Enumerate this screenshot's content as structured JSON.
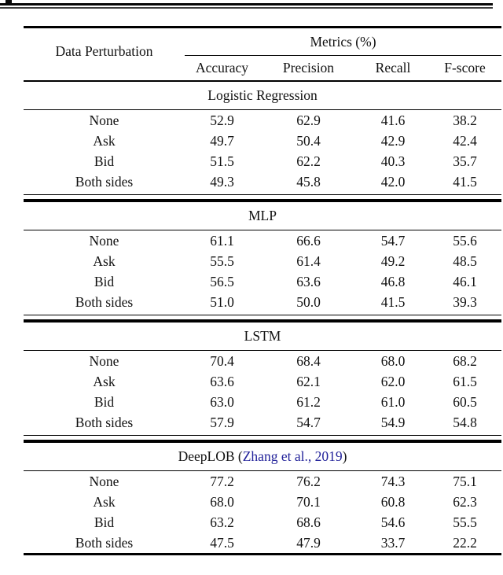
{
  "table": {
    "row_header": "Data Perturbation",
    "metrics_header": "Metrics (%)",
    "columns": [
      "Accuracy",
      "Precision",
      "Recall",
      "F-score"
    ],
    "citation_color": "#22229a",
    "sections": [
      {
        "title": "Logistic Regression",
        "rows": [
          {
            "label": "None",
            "values": [
              "52.9",
              "62.9",
              "41.6",
              "38.2"
            ]
          },
          {
            "label": "Ask",
            "values": [
              "49.7",
              "50.4",
              "42.9",
              "42.4"
            ]
          },
          {
            "label": "Bid",
            "values": [
              "51.5",
              "62.2",
              "40.3",
              "35.7"
            ]
          },
          {
            "label": "Both sides",
            "values": [
              "49.3",
              "45.8",
              "42.0",
              "41.5"
            ]
          }
        ]
      },
      {
        "title": "MLP",
        "rows": [
          {
            "label": "None",
            "values": [
              "61.1",
              "66.6",
              "54.7",
              "55.6"
            ]
          },
          {
            "label": "Ask",
            "values": [
              "55.5",
              "61.4",
              "49.2",
              "48.5"
            ]
          },
          {
            "label": "Bid",
            "values": [
              "56.5",
              "63.6",
              "46.8",
              "46.1"
            ]
          },
          {
            "label": "Both sides",
            "values": [
              "51.0",
              "50.0",
              "41.5",
              "39.3"
            ]
          }
        ]
      },
      {
        "title": "LSTM",
        "rows": [
          {
            "label": "None",
            "values": [
              "70.4",
              "68.4",
              "68.0",
              "68.2"
            ]
          },
          {
            "label": "Ask",
            "values": [
              "63.6",
              "62.1",
              "62.0",
              "61.5"
            ]
          },
          {
            "label": "Bid",
            "values": [
              "63.0",
              "61.2",
              "61.0",
              "60.5"
            ]
          },
          {
            "label": "Both sides",
            "values": [
              "57.9",
              "54.7",
              "54.9",
              "54.8"
            ]
          }
        ]
      },
      {
        "title": "DeepLOB (Zhang et al., 2019)",
        "title_prefix": "DeepLOB (",
        "citation": "Zhang et al., 2019",
        "title_suffix": ")",
        "rows": [
          {
            "label": "None",
            "values": [
              "77.2",
              "76.2",
              "74.3",
              "75.1"
            ]
          },
          {
            "label": "Ask",
            "values": [
              "68.0",
              "70.1",
              "60.8",
              "62.3"
            ]
          },
          {
            "label": "Bid",
            "values": [
              "63.2",
              "68.6",
              "54.6",
              "55.5"
            ]
          },
          {
            "label": "Both sides",
            "values": [
              "47.5",
              "47.9",
              "33.7",
              "22.2"
            ]
          }
        ]
      }
    ]
  }
}
